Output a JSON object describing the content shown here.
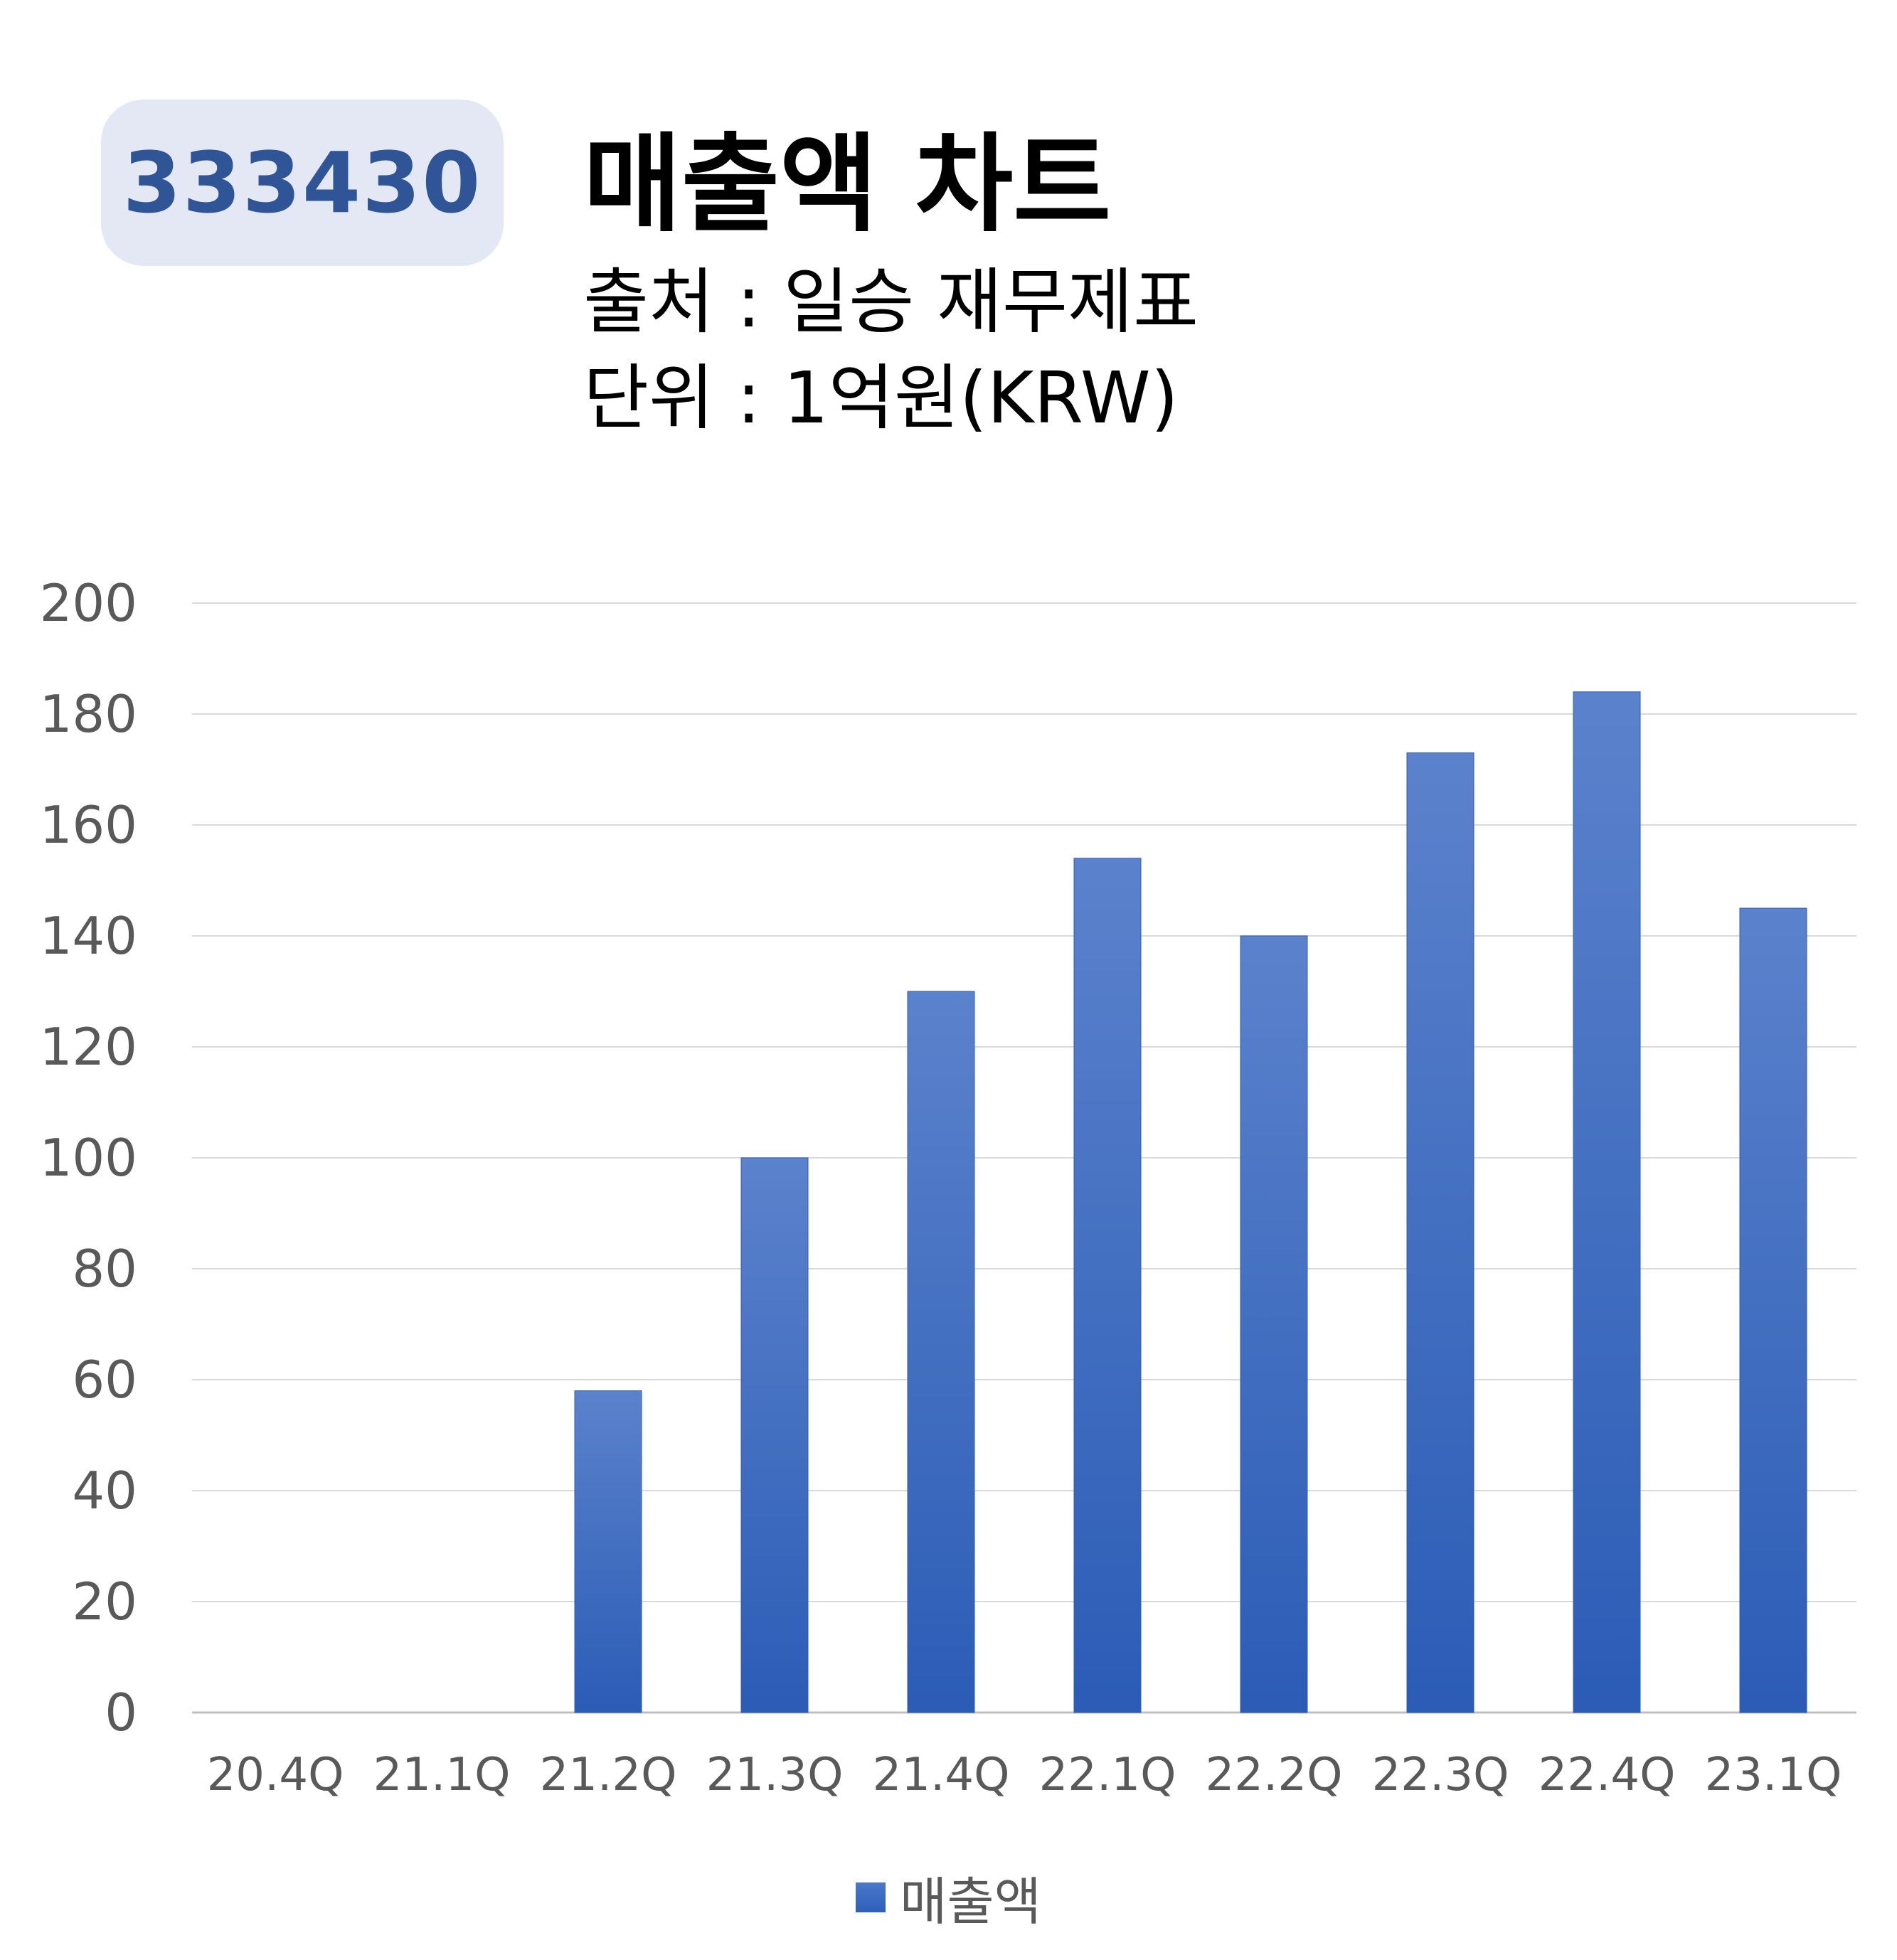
{
  "badge": {
    "ticker": "333430"
  },
  "header": {
    "title": "매출액 차트",
    "source": "출처 : 일승 재무제표",
    "unit": "단위 : 1억원(KRW)"
  },
  "chart_data": {
    "type": "bar",
    "categories": [
      "20.4Q",
      "21.1Q",
      "21.2Q",
      "21.3Q",
      "21.4Q",
      "22.1Q",
      "22.2Q",
      "22.3Q",
      "22.4Q",
      "23.1Q"
    ],
    "series": [
      {
        "name": "매출액",
        "values": [
          0,
          0,
          58,
          100,
          130,
          154,
          140,
          173,
          184,
          145
        ]
      }
    ],
    "yticks": [
      "0",
      "20",
      "40",
      "60",
      "80",
      "100",
      "120",
      "140",
      "160",
      "180",
      "200"
    ],
    "ylim": [
      0,
      200
    ],
    "grid": true,
    "legend_position": "bottom",
    "bar_color_top": "#5b82cc",
    "bar_color_bottom": "#2b5cb6"
  }
}
